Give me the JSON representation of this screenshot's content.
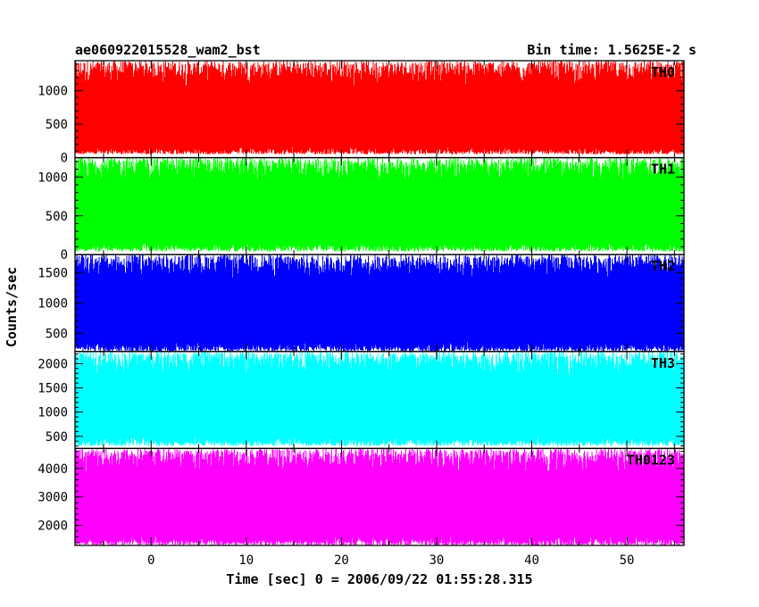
{
  "header": {
    "left_title": "ae060922015528_wam2_bst",
    "right_title": "Bin time: 1.5625E-2 s"
  },
  "axes": {
    "xlabel": "Time [sec] 0 = 2006/09/22 01:55:28.315",
    "ylabel": "Counts/sec"
  },
  "chart_data": [
    {
      "type": "line",
      "name": "TH0",
      "color": "#ff0000",
      "xlim": [
        -8,
        56
      ],
      "ylim": [
        0,
        1450
      ],
      "yticks": [
        0,
        500,
        1000
      ],
      "x_range": [
        -8,
        56
      ],
      "baseline": 550,
      "lower_envelope": 50,
      "upper_envelope": 1450
    },
    {
      "type": "line",
      "name": "TH1",
      "color": "#00ff00",
      "xlim": [
        -8,
        56
      ],
      "ylim": [
        0,
        1250
      ],
      "yticks": [
        0,
        500,
        1000
      ],
      "x_range": [
        -8,
        56
      ],
      "baseline": 530,
      "lower_envelope": 40,
      "upper_envelope": 1250
    },
    {
      "type": "line",
      "name": "TH2",
      "color": "#0000ff",
      "xlim": [
        -8,
        56
      ],
      "ylim": [
        200,
        1800
      ],
      "yticks": [
        500,
        1000,
        1500
      ],
      "x_range": [
        -8,
        56
      ],
      "baseline": 850,
      "lower_envelope": 200,
      "upper_envelope": 1800
    },
    {
      "type": "line",
      "name": "TH3",
      "color": "#00ffff",
      "xlim": [
        -8,
        56
      ],
      "ylim": [
        250,
        2250
      ],
      "yticks": [
        500,
        1000,
        1500,
        2000
      ],
      "x_range": [
        -8,
        56
      ],
      "baseline": 1150,
      "lower_envelope": 300,
      "upper_envelope": 2250
    },
    {
      "type": "line",
      "name": "TH0123",
      "color": "#ff00ff",
      "xlim": [
        -8,
        56
      ],
      "ylim": [
        1300,
        4700
      ],
      "yticks": [
        2000,
        3000,
        4000
      ],
      "x_range": [
        -8,
        56
      ],
      "baseline": 2750,
      "lower_envelope": 1300,
      "upper_envelope": 4700
    }
  ],
  "xticks": [
    0,
    10,
    20,
    30,
    40,
    50
  ]
}
